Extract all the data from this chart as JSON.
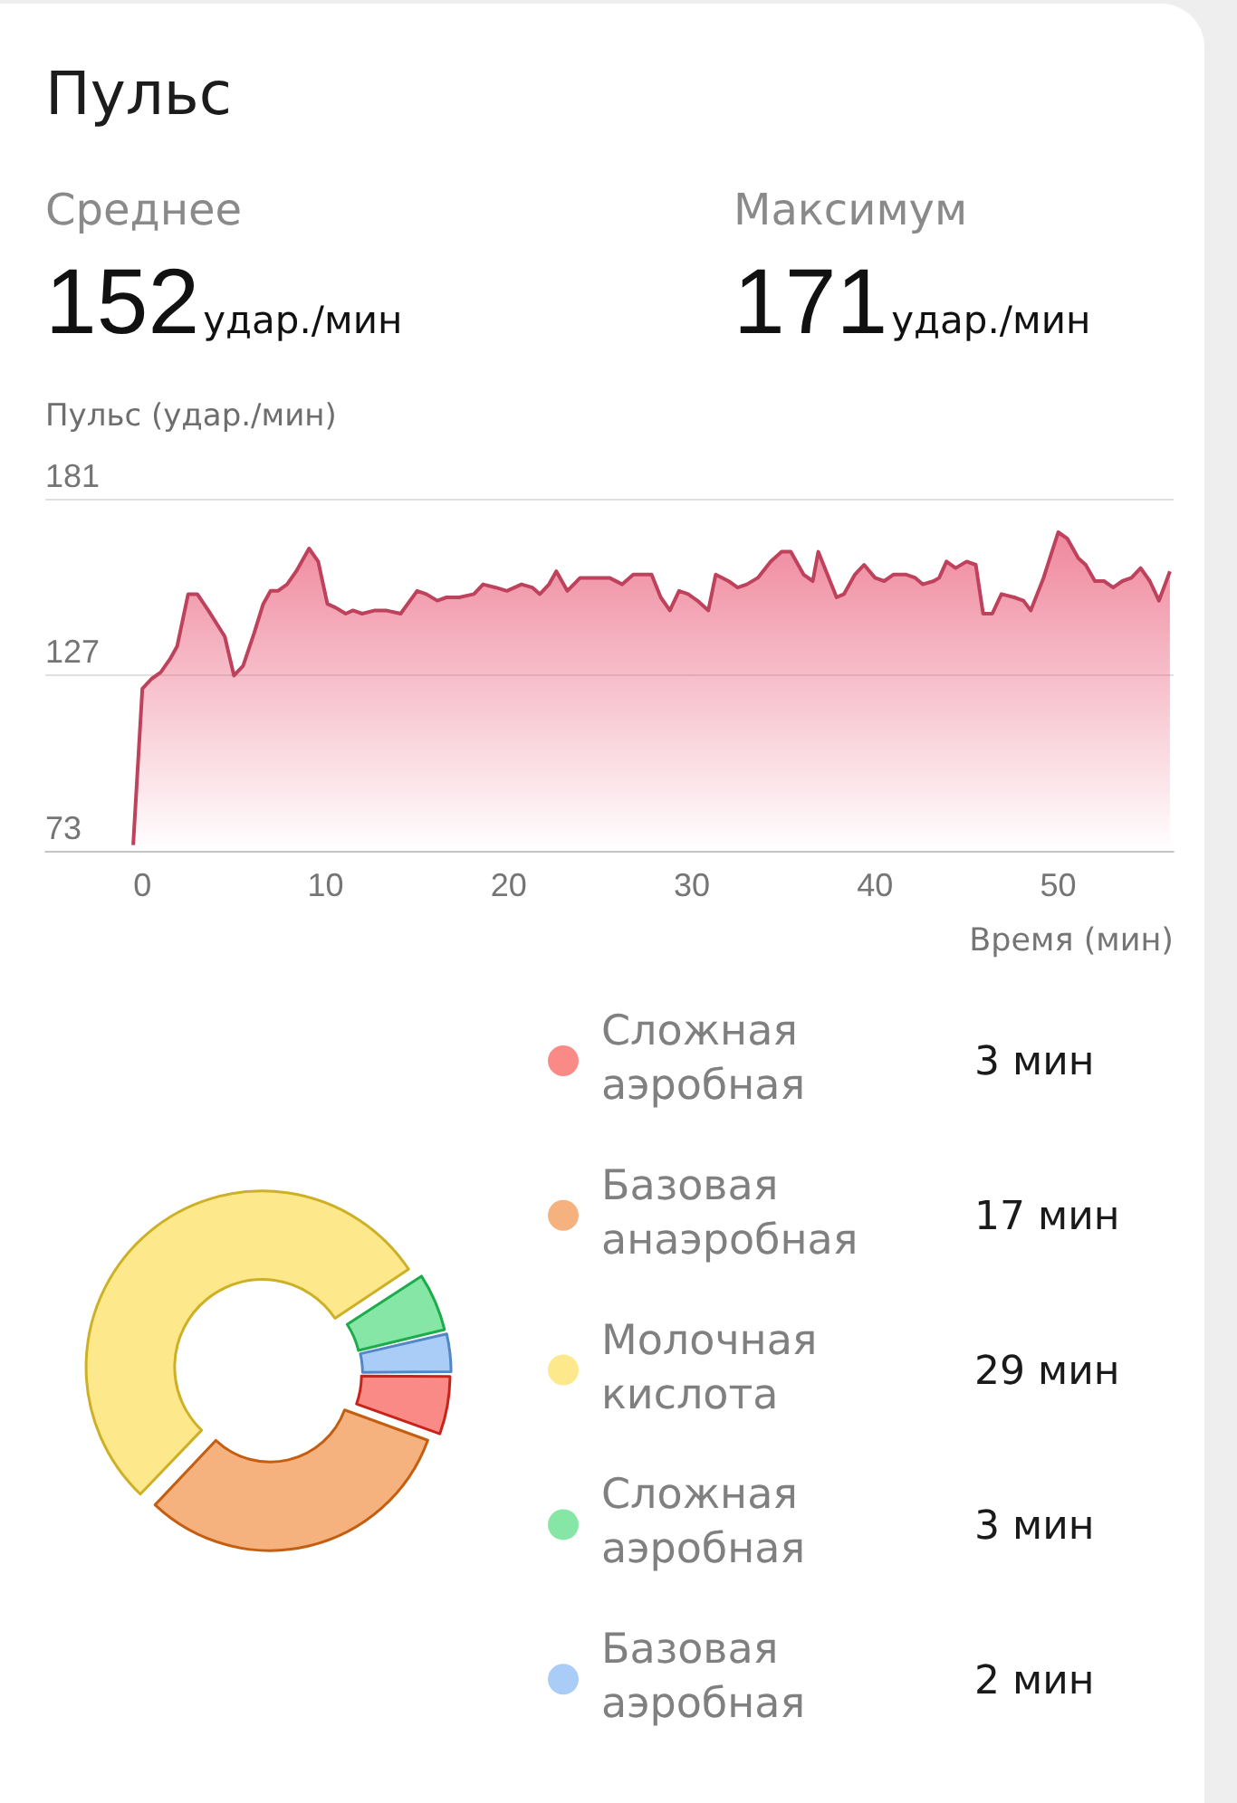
{
  "chart_data": [
    {
      "type": "area",
      "title": "Пульс",
      "annotations": [
        "Среднее",
        "152",
        "удар./мин",
        "Максимум",
        "171",
        "удар./мин"
      ],
      "ylabel": "Пульс (удар./мин)",
      "xlabel": "Время (мин)",
      "x": [
        -0.5,
        0,
        0.5,
        1.0,
        1.5,
        1.9,
        2.5,
        3.0,
        3.6,
        4.5,
        5.0,
        5.5,
        6.1,
        6.6,
        7.0,
        7.4,
        7.9,
        8.4,
        9.1,
        9.6,
        10.1,
        10.5,
        11.1,
        11.5,
        12.0,
        12.7,
        13.3,
        14.1,
        15.0,
        15.5,
        16.1,
        16.6,
        17.3,
        18.1,
        18.6,
        19.3,
        19.9,
        20.7,
        21.3,
        21.7,
        22.2,
        22.6,
        23.2,
        23.9,
        24.7,
        25.5,
        26.2,
        26.8,
        27.2,
        27.8,
        28.3,
        28.8,
        29.3,
        29.8,
        30.3,
        30.9,
        31.3,
        32.0,
        32.5,
        33.0,
        33.6,
        34.3,
        34.9,
        35.4,
        36.1,
        36.6,
        36.9,
        37.4,
        37.9,
        38.3,
        38.9,
        39.4,
        40.0,
        40.5,
        41.0,
        41.7,
        42.2,
        42.6,
        43.2,
        43.5,
        43.9,
        44.4,
        45.0,
        45.5,
        45.9,
        46.4,
        46.9,
        47.6,
        48.1,
        48.5,
        49.2,
        50.0,
        50.5,
        51.1,
        51.5,
        52.0,
        52.5,
        53.0,
        53.5,
        54.0,
        54.5,
        55.0,
        55.5,
        56.1
      ],
      "values": [
        75,
        123,
        126,
        128,
        132,
        136,
        152,
        152,
        147,
        139,
        127,
        130,
        140,
        149,
        153,
        153,
        155,
        159,
        166,
        162,
        149,
        148,
        146,
        147,
        146,
        147,
        147,
        146,
        153,
        152,
        150,
        151,
        151,
        152,
        155,
        154,
        153,
        155,
        154,
        152,
        155,
        159,
        153,
        157,
        157,
        157,
        155,
        158,
        158,
        158,
        151,
        147,
        153,
        152,
        150,
        147,
        158,
        156,
        154,
        155,
        157,
        162,
        165,
        165,
        158,
        156,
        165,
        158,
        151,
        152,
        158,
        161,
        157,
        156,
        158,
        158,
        157,
        155,
        156,
        157,
        162,
        160,
        162,
        161,
        146,
        146,
        152,
        151,
        150,
        147,
        157,
        171,
        169,
        163,
        161,
        156,
        156,
        154,
        156,
        157,
        160,
        156,
        150,
        159
      ],
      "color": "#e8506f",
      "xlim": [
        -5.3,
        56.3
      ],
      "xticks": [
        0,
        10,
        20,
        30,
        40,
        50
      ],
      "ylim": [
        73,
        181
      ],
      "yticks": [
        73,
        127,
        181
      ],
      "grid": "y",
      "legend": false,
      "marker": "none"
    },
    {
      "type": "donut",
      "categories": [
        "Сложная аэробная",
        "Базовая анаэробная",
        "Молочная кислота",
        "Сложная аэробная",
        "Базовая аэробная"
      ],
      "values": [
        3,
        17,
        29,
        3,
        2
      ],
      "value_labels": [
        "3 мин",
        "17 мин",
        "29 мин",
        "3 мин",
        "2 мин"
      ],
      "colors": [
        "#f98a85",
        "#f6b27e",
        "#fde98c",
        "#86e6a5",
        "#a9cdf7"
      ],
      "legend": "right"
    }
  ]
}
